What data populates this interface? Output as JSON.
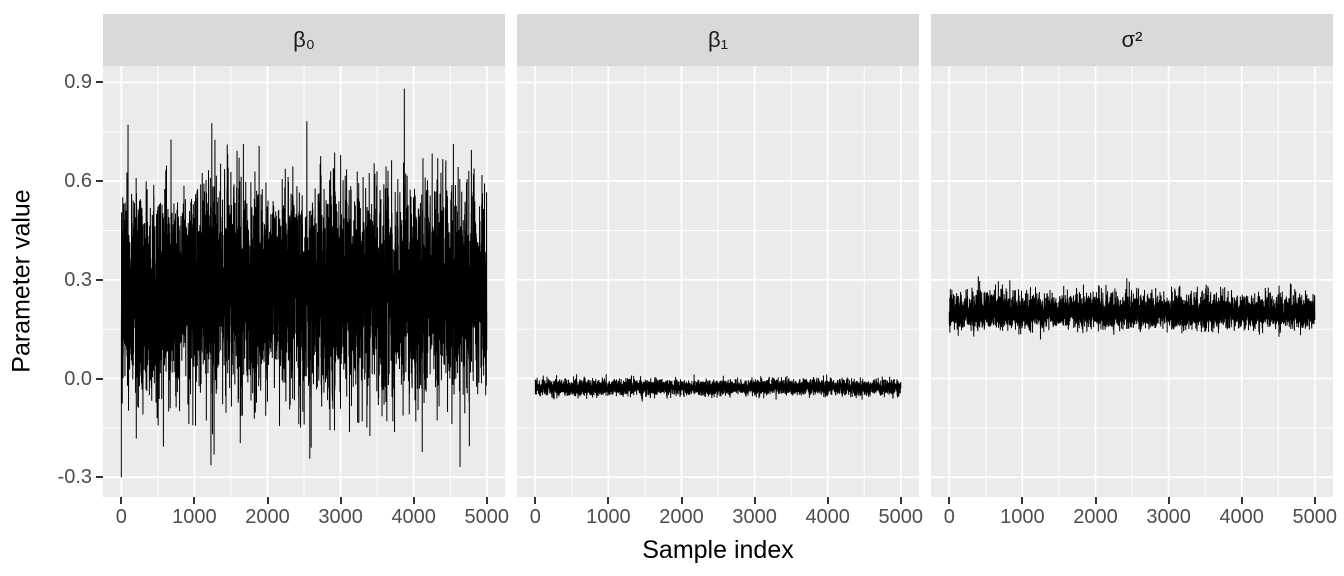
{
  "chart_data": {
    "type": "line",
    "subtype": "mcmc-trace-facets",
    "title": "",
    "xlabel": "Sample index",
    "ylabel": "Parameter value",
    "n_samples": 5000,
    "x_range": [
      0,
      5000
    ],
    "ylim": [
      -0.36,
      0.95
    ],
    "x_ticks": [
      {
        "label": "0",
        "value": 0
      },
      {
        "label": "1000",
        "value": 1000
      },
      {
        "label": "2000",
        "value": 2000
      },
      {
        "label": "3000",
        "value": 3000
      },
      {
        "label": "4000",
        "value": 4000
      },
      {
        "label": "5000",
        "value": 5000
      }
    ],
    "y_ticks": [
      {
        "label": "0.9",
        "value": 0.9
      },
      {
        "label": "0.6",
        "value": 0.6
      },
      {
        "label": "0.3",
        "value": 0.3
      },
      {
        "label": "0.0",
        "value": 0.0
      },
      {
        "label": "-0.3",
        "value": -0.3
      }
    ],
    "x_minor_gridlines": [
      500,
      1500,
      2500,
      3500,
      4500
    ],
    "y_minor_gridlines": [
      0.75,
      0.45,
      0.15,
      -0.15
    ],
    "grid": "on",
    "legend": "none",
    "facets": [
      {
        "label": "β₀",
        "param": "beta_0",
        "dist": "normal",
        "mean": 0.27,
        "sd": 0.155,
        "start": -0.3,
        "approx_min": -0.3,
        "approx_max": 0.89,
        "seed": 101
      },
      {
        "label": "β₁",
        "param": "beta_1",
        "dist": "normal",
        "mean": -0.027,
        "sd": 0.012,
        "approx_min": -0.075,
        "approx_max": 0.015,
        "seed": 202
      },
      {
        "label": "σ²",
        "param": "sigma_sq",
        "dist": "lognormal",
        "mean": 0.2,
        "sd": 0.13,
        "approx_min": 0.12,
        "approx_max": 0.34,
        "seed": 303
      }
    ],
    "colors": {
      "trace": "#000000",
      "panel_bg": "#EBEBEB",
      "strip_bg": "#D9D9D9",
      "gridline": "#FFFFFF",
      "tick_label": "#4D4D4D",
      "axis_title": "#000000",
      "tick_mark": "#333333",
      "background": "#FFFFFF"
    }
  }
}
